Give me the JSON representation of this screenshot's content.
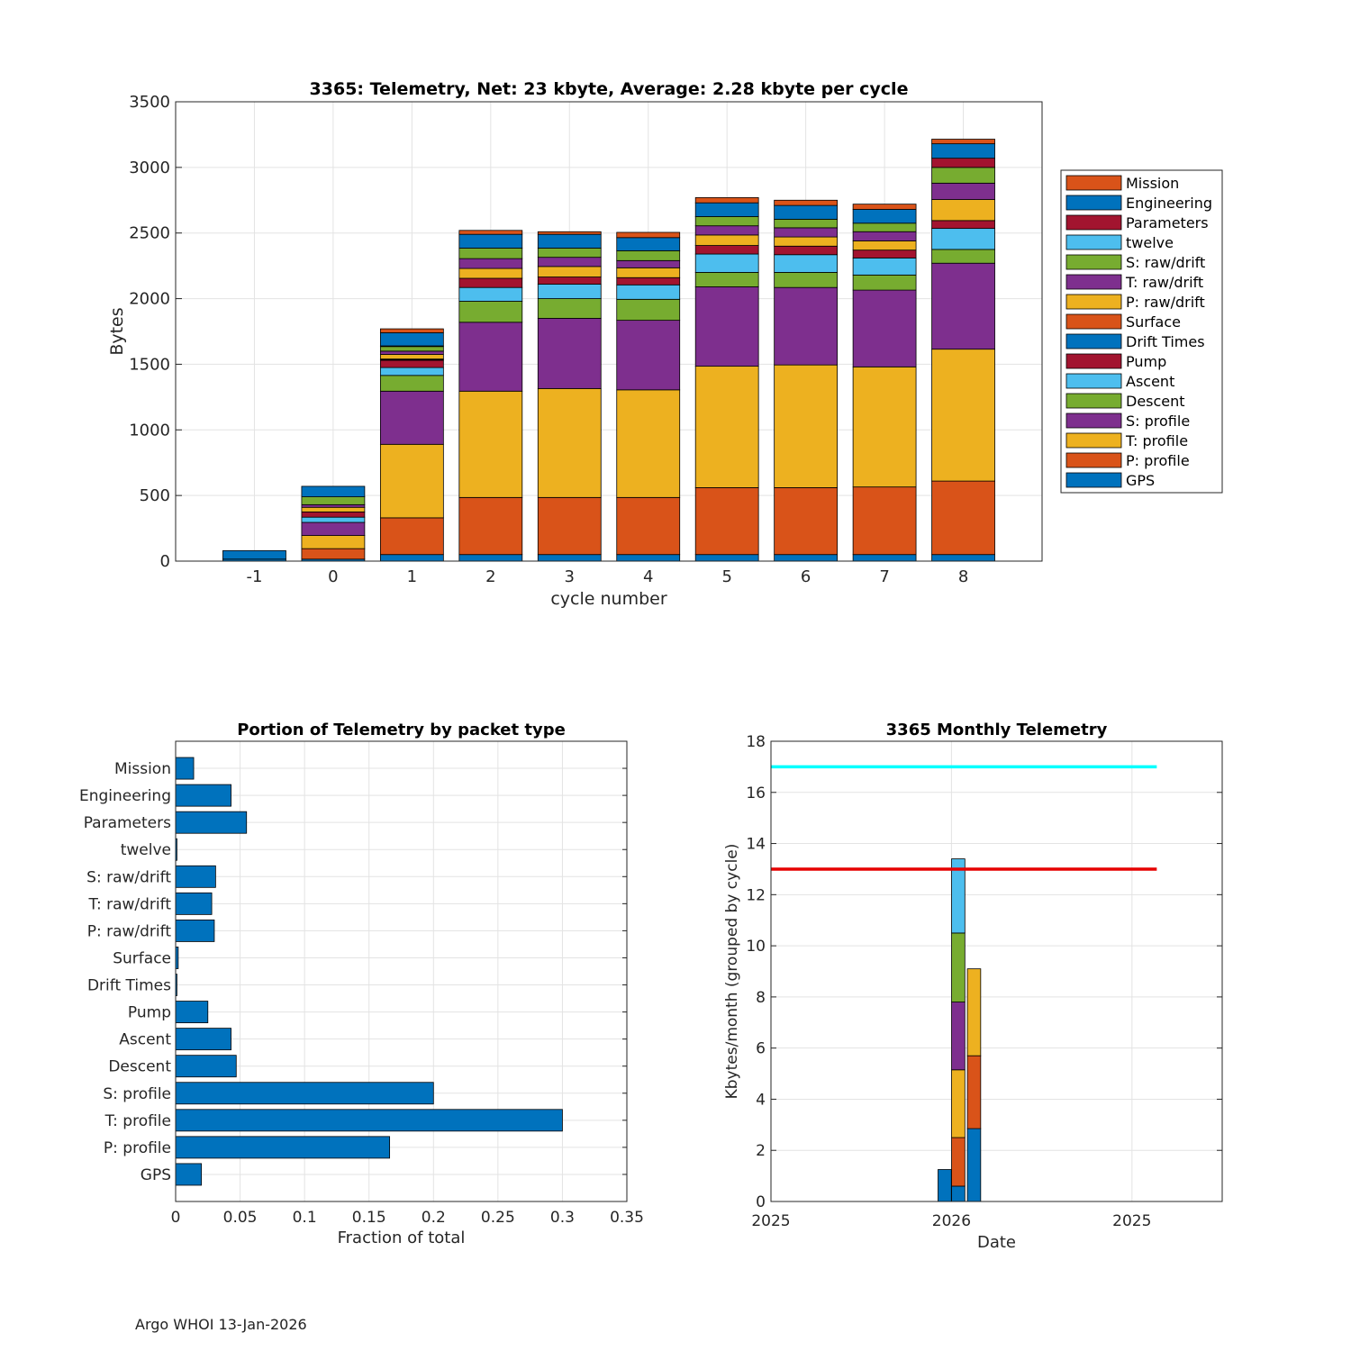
{
  "colors": {
    "GPS": "#0072BD",
    "P: profile": "#D95319",
    "T: profile": "#EDB120",
    "S: profile": "#7E2F8E",
    "Descent": "#77AC30",
    "Ascent": "#4DBEEE",
    "Pump": "#A2142F",
    "Drift Times": "#0072BD",
    "Surface": "#D95319",
    "P: raw/drift": "#EDB120",
    "T: raw/drift": "#7E2F8E",
    "S: raw/drift": "#77AC30",
    "twelve": "#4DBEEE",
    "Parameters": "#A2142F",
    "Engineering": "#0072BD",
    "Mission": "#D95319"
  },
  "footer": "Argo WHOI 13-Jan-2026",
  "chart_data": [
    {
      "type": "bar",
      "stacked": true,
      "title": "3365: Telemetry, Net:      23 kbyte,  Average: 2.28 kbyte per cycle",
      "xlabel": "cycle number",
      "ylabel": "Bytes",
      "categories": [
        "-1",
        "0",
        "1",
        "2",
        "3",
        "4",
        "5",
        "6",
        "7",
        "8"
      ],
      "ylim": [
        0,
        3500
      ],
      "yticks": [
        0,
        500,
        1000,
        1500,
        2000,
        2500,
        3000,
        3500
      ],
      "grid": true,
      "legend_position": "right",
      "legend_order": [
        "Mission",
        "Engineering",
        "Parameters",
        "twelve",
        "S: raw/drift",
        "T: raw/drift",
        "P: raw/drift",
        "Surface",
        "Drift Times",
        "Pump",
        "Ascent",
        "Descent",
        "S: profile",
        "T: profile",
        "P: profile",
        "GPS"
      ],
      "series": [
        {
          "name": "GPS",
          "values": [
            15,
            15,
            50,
            50,
            50,
            50,
            50,
            50,
            50,
            50
          ]
        },
        {
          "name": "P: profile",
          "values": [
            0,
            80,
            280,
            435,
            435,
            435,
            510,
            510,
            515,
            560
          ]
        },
        {
          "name": "T: profile",
          "values": [
            0,
            100,
            560,
            810,
            830,
            820,
            925,
            935,
            915,
            1005
          ]
        },
        {
          "name": "S: profile",
          "values": [
            0,
            100,
            405,
            525,
            535,
            530,
            605,
            590,
            585,
            655
          ]
        },
        {
          "name": "Descent",
          "values": [
            0,
            0,
            120,
            160,
            150,
            160,
            110,
            115,
            115,
            105
          ]
        },
        {
          "name": "Ascent",
          "values": [
            0,
            40,
            60,
            105,
            110,
            110,
            140,
            135,
            130,
            160
          ]
        },
        {
          "name": "Pump",
          "values": [
            0,
            40,
            55,
            70,
            55,
            55,
            65,
            65,
            60,
            60
          ]
        },
        {
          "name": "Drift Times",
          "values": [
            0,
            0,
            5,
            0,
            0,
            0,
            0,
            0,
            0,
            0
          ]
        },
        {
          "name": "Surface",
          "values": [
            0,
            0,
            5,
            0,
            0,
            0,
            0,
            0,
            0,
            0
          ]
        },
        {
          "name": "P: raw/drift",
          "values": [
            0,
            35,
            35,
            75,
            80,
            75,
            80,
            70,
            70,
            160
          ]
        },
        {
          "name": "T: raw/drift",
          "values": [
            0,
            20,
            25,
            75,
            70,
            55,
            70,
            70,
            70,
            125
          ]
        },
        {
          "name": "S: raw/drift",
          "values": [
            0,
            60,
            35,
            80,
            70,
            75,
            70,
            65,
            65,
            120
          ]
        },
        {
          "name": "twelve",
          "values": [
            0,
            0,
            0,
            0,
            0,
            0,
            0,
            0,
            0,
            0
          ]
        },
        {
          "name": "Parameters",
          "values": [
            0,
            0,
            5,
            0,
            0,
            0,
            0,
            0,
            0,
            70
          ]
        },
        {
          "name": "Engineering",
          "values": [
            65,
            80,
            100,
            105,
            105,
            100,
            105,
            105,
            105,
            110
          ]
        },
        {
          "name": "Mission",
          "values": [
            0,
            0,
            30,
            30,
            20,
            40,
            40,
            40,
            40,
            35
          ]
        }
      ]
    },
    {
      "type": "barh",
      "title": "Portion of Telemetry by packet type",
      "xlabel": "Fraction of total",
      "ylabel": "",
      "categories": [
        "GPS",
        "P: profile",
        "T: profile",
        "S: profile",
        "Descent",
        "Ascent",
        "Pump",
        "Drift Times",
        "Surface",
        "P: raw/drift",
        "T: raw/drift",
        "S: raw/drift",
        "twelve",
        "Parameters",
        "Engineering",
        "Mission"
      ],
      "values": [
        0.02,
        0.166,
        0.3,
        0.2,
        0.047,
        0.043,
        0.025,
        0.001,
        0.002,
        0.03,
        0.028,
        0.031,
        0.001,
        0.055,
        0.043,
        0.014
      ],
      "xlim": [
        0,
        0.35
      ],
      "xticks": [
        0,
        0.05,
        0.1,
        0.15,
        0.2,
        0.25,
        0.3,
        0.35
      ],
      "xtick_labels": [
        "0",
        "0.05",
        "0.1",
        "0.15",
        "0.2",
        "0.25",
        "0.3",
        "0.35"
      ],
      "grid": true
    },
    {
      "type": "bar",
      "stacked": true,
      "title": "3365 Monthly Telemetry",
      "xlabel": "Date",
      "ylabel": "Kbytes/month (grouped by cycle)",
      "xlim": [
        0,
        10
      ],
      "xticks": [
        0,
        4,
        8
      ],
      "xtick_labels": [
        "2025",
        "2026",
        "2025"
      ],
      "ylim": [
        0,
        18
      ],
      "yticks": [
        0,
        2,
        4,
        6,
        8,
        10,
        12,
        14,
        16,
        18
      ],
      "grid": true,
      "bars": [
        {
          "x": 3.85,
          "segments": [
            {
              "name": "GPS",
              "value": 1.25
            }
          ]
        },
        {
          "x": 4.15,
          "segments": [
            {
              "name": "GPS",
              "value": 0.6
            },
            {
              "name": "P: profile",
              "value": 1.9
            },
            {
              "name": "T: profile",
              "value": 2.65
            },
            {
              "name": "S: profile",
              "value": 2.65
            },
            {
              "name": "Descent",
              "value": 2.7
            },
            {
              "name": "Ascent",
              "value": 2.9
            }
          ]
        },
        {
          "x": 4.5,
          "segments": [
            {
              "name": "GPS",
              "value": 2.85
            },
            {
              "name": "P: profile",
              "value": 2.85
            },
            {
              "name": "T: profile",
              "value": 3.4
            }
          ]
        }
      ],
      "hlines": [
        {
          "y": 17,
          "x": [
            0,
            8.55
          ],
          "color": "#00FFFF"
        },
        {
          "y": 13,
          "x": [
            0,
            8.55
          ],
          "color": "#E60000"
        }
      ]
    }
  ]
}
